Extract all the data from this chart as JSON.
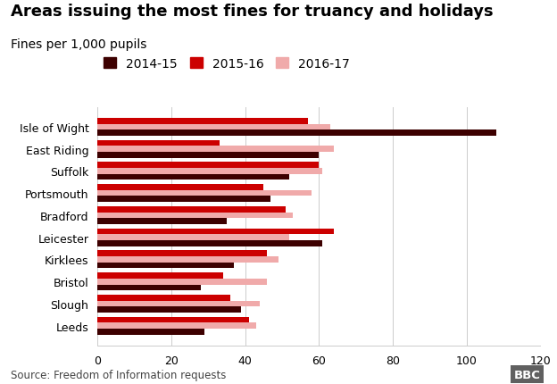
{
  "title": "Areas issuing the most fines for truancy and holidays",
  "subtitle": "Fines per 1,000 pupils",
  "source": "Source: Freedom of Information requests",
  "categories": [
    "Isle of Wight",
    "East Riding",
    "Suffolk",
    "Portsmouth",
    "Bradford",
    "Leicester",
    "Kirklees",
    "Bristol",
    "Slough",
    "Leeds"
  ],
  "years": [
    "2014-15",
    "2015-16",
    "2016-17"
  ],
  "colors": [
    "#3d0000",
    "#cc0000",
    "#f0aaaa"
  ],
  "values": {
    "2014-15": [
      108,
      60,
      52,
      47,
      35,
      61,
      37,
      28,
      39,
      29
    ],
    "2015-16": [
      57,
      33,
      60,
      45,
      51,
      64,
      46,
      34,
      36,
      41
    ],
    "2016-17": [
      63,
      64,
      61,
      58,
      53,
      52,
      49,
      46,
      44,
      43
    ]
  },
  "xlim": [
    0,
    120
  ],
  "xticks": [
    0,
    20,
    40,
    60,
    80,
    100,
    120
  ],
  "bar_height": 0.27,
  "background_color": "#ffffff",
  "title_fontsize": 13,
  "subtitle_fontsize": 10,
  "tick_fontsize": 9,
  "legend_fontsize": 10,
  "source_fontsize": 8.5
}
